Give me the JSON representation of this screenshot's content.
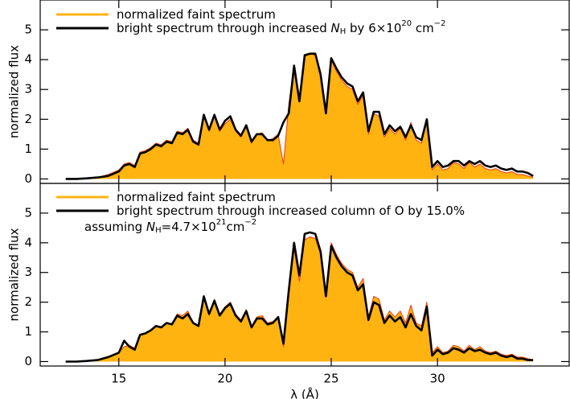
{
  "chart_data": [
    {
      "type": "line",
      "ylabel": "normalized flux",
      "xlim": [
        11.3,
        36.2
      ],
      "ylim": [
        -0.15,
        6
      ],
      "xticks": [
        15,
        20,
        25,
        30
      ],
      "yticks": [
        0,
        1,
        2,
        3,
        4,
        5
      ],
      "x": [
        12.5,
        13,
        13.5,
        14,
        14.5,
        15,
        15.25,
        15.5,
        15.75,
        16,
        16.25,
        16.5,
        16.75,
        17,
        17.25,
        17.5,
        17.75,
        18,
        18.25,
        18.5,
        18.75,
        19,
        19.25,
        19.5,
        19.75,
        20,
        20.25,
        20.5,
        20.75,
        21,
        21.25,
        21.5,
        21.75,
        22,
        22.25,
        22.5,
        22.75,
        23,
        23.25,
        23.5,
        23.75,
        24,
        24.25,
        24.5,
        24.75,
        25,
        25.25,
        25.5,
        25.75,
        26,
        26.25,
        26.5,
        26.75,
        27,
        27.25,
        27.5,
        27.75,
        28,
        28.25,
        28.5,
        28.75,
        29,
        29.25,
        29.5,
        29.75,
        30,
        30.25,
        30.5,
        30.75,
        31,
        31.25,
        31.5,
        31.75,
        32,
        32.25,
        32.5,
        32.75,
        33,
        33.25,
        33.5,
        33.75,
        34,
        34.25,
        34.5
      ],
      "series": [
        {
          "name": [
            "normalized faint spectrum"
          ],
          "name_style": [
            ""
          ],
          "color": "#ee3a10",
          "fill_color": "#ffb310",
          "values": [
            0,
            0,
            0.02,
            0.05,
            0.15,
            0.3,
            0.5,
            0.55,
            0.45,
            0.9,
            0.95,
            1.05,
            1.2,
            1.15,
            1.3,
            1.25,
            1.6,
            1.55,
            1.7,
            1.3,
            1.2,
            2.1,
            1.6,
            2.1,
            1.6,
            1.85,
            2.0,
            1.6,
            1.4,
            1.75,
            1.2,
            1.5,
            1.55,
            1.3,
            1.35,
            1.5,
            0.5,
            2.5,
            3.8,
            2.7,
            4.1,
            4.2,
            4.15,
            3.6,
            2.2,
            4.0,
            3.6,
            3.3,
            3.1,
            3.0,
            2.5,
            2.8,
            1.5,
            2.2,
            2.1,
            1.4,
            1.7,
            1.5,
            1.7,
            1.3,
            1.9,
            1.3,
            1.2,
            2.0,
            0.3,
            0.5,
            0.3,
            0.35,
            0.55,
            0.5,
            0.35,
            0.55,
            0.4,
            0.5,
            0.35,
            0.3,
            0.35,
            0.25,
            0.2,
            0.25,
            0.15,
            0.15,
            0.1,
            0.05
          ]
        },
        {
          "name": [
            "bright spectrum through increased ",
            "N",
            "H",
            " by 6×10",
            "20",
            " cm",
            "−2"
          ],
          "name_style": [
            "",
            "italic",
            "sub",
            "",
            "sup",
            "",
            "sup"
          ],
          "color": "#000000",
          "values": [
            0,
            0,
            0.02,
            0.05,
            0.1,
            0.25,
            0.45,
            0.5,
            0.4,
            0.85,
            0.9,
            1.0,
            1.15,
            1.1,
            1.25,
            1.2,
            1.55,
            1.5,
            1.65,
            1.25,
            1.15,
            2.15,
            1.65,
            2.15,
            1.65,
            1.95,
            2.1,
            1.65,
            1.45,
            1.8,
            1.25,
            1.5,
            1.5,
            1.3,
            1.3,
            1.45,
            1.9,
            2.2,
            3.8,
            2.6,
            4.15,
            4.2,
            4.2,
            3.5,
            2.2,
            4.05,
            3.7,
            3.4,
            3.2,
            3.1,
            2.6,
            2.9,
            1.6,
            2.25,
            2.25,
            1.5,
            1.8,
            1.6,
            1.75,
            1.4,
            1.8,
            1.4,
            1.3,
            2.0,
            0.4,
            0.6,
            0.4,
            0.45,
            0.6,
            0.6,
            0.45,
            0.6,
            0.5,
            0.6,
            0.45,
            0.4,
            0.45,
            0.35,
            0.3,
            0.35,
            0.25,
            0.25,
            0.2,
            0.1
          ]
        }
      ]
    },
    {
      "type": "line",
      "ylabel": "normalized flux",
      "xlabel": "λ (Å)",
      "annotation": [
        "assuming ",
        "N",
        "H",
        "=4.7×10",
        "21",
        "cm",
        "−2"
      ],
      "annotation_style": [
        "",
        "italic",
        "sub",
        "",
        "sup",
        "",
        "sup"
      ],
      "xlim": [
        11.3,
        36.2
      ],
      "ylim": [
        -0.15,
        6
      ],
      "xticks": [
        15,
        20,
        25,
        30
      ],
      "yticks": [
        0,
        1,
        2,
        3,
        4,
        5
      ],
      "x": [
        12.5,
        13,
        13.5,
        14,
        14.5,
        15,
        15.25,
        15.5,
        15.75,
        16,
        16.25,
        16.5,
        16.75,
        17,
        17.25,
        17.5,
        17.75,
        18,
        18.25,
        18.5,
        18.75,
        19,
        19.25,
        19.5,
        19.75,
        20,
        20.25,
        20.5,
        20.75,
        21,
        21.25,
        21.5,
        21.75,
        22,
        22.25,
        22.5,
        22.75,
        23,
        23.25,
        23.5,
        23.75,
        24,
        24.25,
        24.5,
        24.75,
        25,
        25.25,
        25.5,
        25.75,
        26,
        26.25,
        26.5,
        26.75,
        27,
        27.25,
        27.5,
        27.75,
        28,
        28.25,
        28.5,
        28.75,
        29,
        29.25,
        29.5,
        29.75,
        30,
        30.25,
        30.5,
        30.75,
        31,
        31.25,
        31.5,
        31.75,
        32,
        32.25,
        32.5,
        32.75,
        33,
        33.25,
        33.5,
        33.75,
        34,
        34.25,
        34.5
      ],
      "series": [
        {
          "name": [
            "normalized faint spectrum"
          ],
          "name_style": [
            ""
          ],
          "color": "#ee3a10",
          "fill_color": "#ffb310",
          "values": [
            0,
            0,
            0.02,
            0.05,
            0.15,
            0.3,
            0.5,
            0.55,
            0.45,
            0.9,
            0.95,
            1.05,
            1.2,
            1.15,
            1.3,
            1.25,
            1.6,
            1.55,
            1.7,
            1.3,
            1.2,
            2.1,
            1.6,
            2.1,
            1.6,
            1.85,
            2.0,
            1.6,
            1.4,
            1.75,
            1.2,
            1.5,
            1.55,
            1.3,
            1.35,
            1.5,
            0.5,
            2.5,
            3.8,
            2.7,
            4.1,
            4.2,
            4.15,
            3.6,
            2.2,
            4.0,
            3.6,
            3.3,
            3.1,
            3.0,
            2.5,
            2.8,
            1.5,
            2.2,
            2.1,
            1.4,
            1.7,
            1.5,
            1.7,
            1.3,
            1.9,
            1.3,
            1.2,
            2.0,
            0.3,
            0.5,
            0.3,
            0.35,
            0.55,
            0.5,
            0.35,
            0.55,
            0.4,
            0.5,
            0.35,
            0.3,
            0.35,
            0.25,
            0.2,
            0.25,
            0.15,
            0.15,
            0.1,
            0.05
          ]
        },
        {
          "name": [
            "bright spectrum through increased column of O by 15.0%"
          ],
          "name_style": [
            ""
          ],
          "color": "#000000",
          "values": [
            0,
            0,
            0.02,
            0.05,
            0.15,
            0.3,
            0.7,
            0.5,
            0.4,
            0.9,
            0.95,
            1.05,
            1.2,
            1.15,
            1.3,
            1.25,
            1.55,
            1.45,
            1.6,
            1.3,
            1.2,
            2.2,
            1.6,
            2.05,
            1.55,
            1.8,
            1.95,
            1.55,
            1.35,
            1.7,
            1.15,
            1.45,
            1.45,
            1.25,
            1.3,
            1.5,
            0.6,
            2.4,
            4.0,
            2.9,
            4.3,
            4.35,
            4.3,
            3.7,
            2.2,
            3.9,
            3.5,
            3.2,
            3.0,
            2.9,
            2.4,
            2.6,
            1.4,
            2.0,
            1.9,
            1.3,
            1.55,
            1.35,
            1.5,
            1.15,
            1.6,
            1.2,
            1.05,
            1.85,
            0.2,
            0.4,
            0.25,
            0.3,
            0.45,
            0.4,
            0.3,
            0.45,
            0.35,
            0.4,
            0.3,
            0.25,
            0.3,
            0.2,
            0.15,
            0.2,
            0.1,
            0.1,
            0.05,
            0.05
          ]
        }
      ]
    }
  ]
}
